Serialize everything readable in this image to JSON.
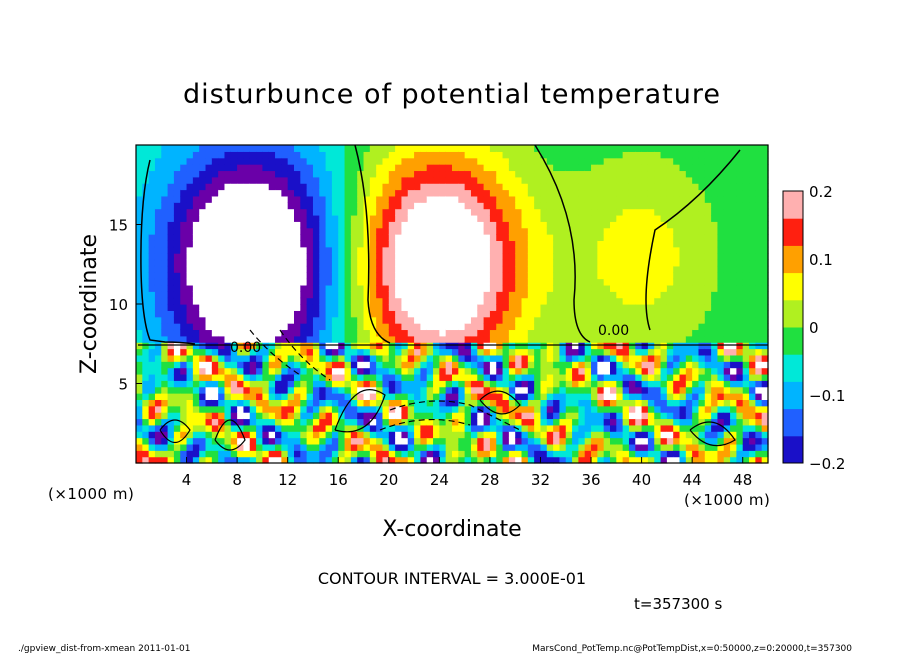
{
  "chart_data": {
    "type": "heatmap",
    "title": "disturbunce of potential temperature",
    "xlabel": "X-coordinate",
    "ylabel": "Z-coordinate",
    "x_unit_left": "(×1000 m)",
    "x_unit_right": "(×1000 m)",
    "xlim": [
      0,
      50
    ],
    "ylim": [
      0,
      20
    ],
    "x_ticks": [
      4,
      8,
      12,
      16,
      20,
      24,
      28,
      32,
      36,
      40,
      44,
      48
    ],
    "y_ticks": [
      5,
      10,
      15
    ],
    "colorbar": {
      "min": -0.2,
      "max": 0.2,
      "tick_values": [
        0.2,
        0.1,
        0,
        -0.1,
        -0.2
      ],
      "tick_labels": [
        "0.2",
        "0.1",
        "0",
        "−0.1",
        "−0.2"
      ]
    },
    "contour_interval_text": "CONTOUR INTERVAL = 3.000E-01",
    "contour_label": "0.00",
    "time_text": "t=357300 s",
    "grid": false,
    "field": {
      "description": "approximate disturbance of potential temperature",
      "upper_layer_features": [
        {
          "x": 9,
          "z": 12.5,
          "amp": -0.22
        },
        {
          "x": 24,
          "z": 12.5,
          "amp": 0.22
        },
        {
          "x": 40,
          "z": 13,
          "amp": 0.06
        }
      ],
      "boundary_z": 7.5
    }
  },
  "footer": {
    "left": "./gpview_dist-from-xmean  2011-01-01",
    "right": "MarsCond_PotTemp.nc@PotTempDist,x=0:50000,z=0:20000,t=357300"
  }
}
